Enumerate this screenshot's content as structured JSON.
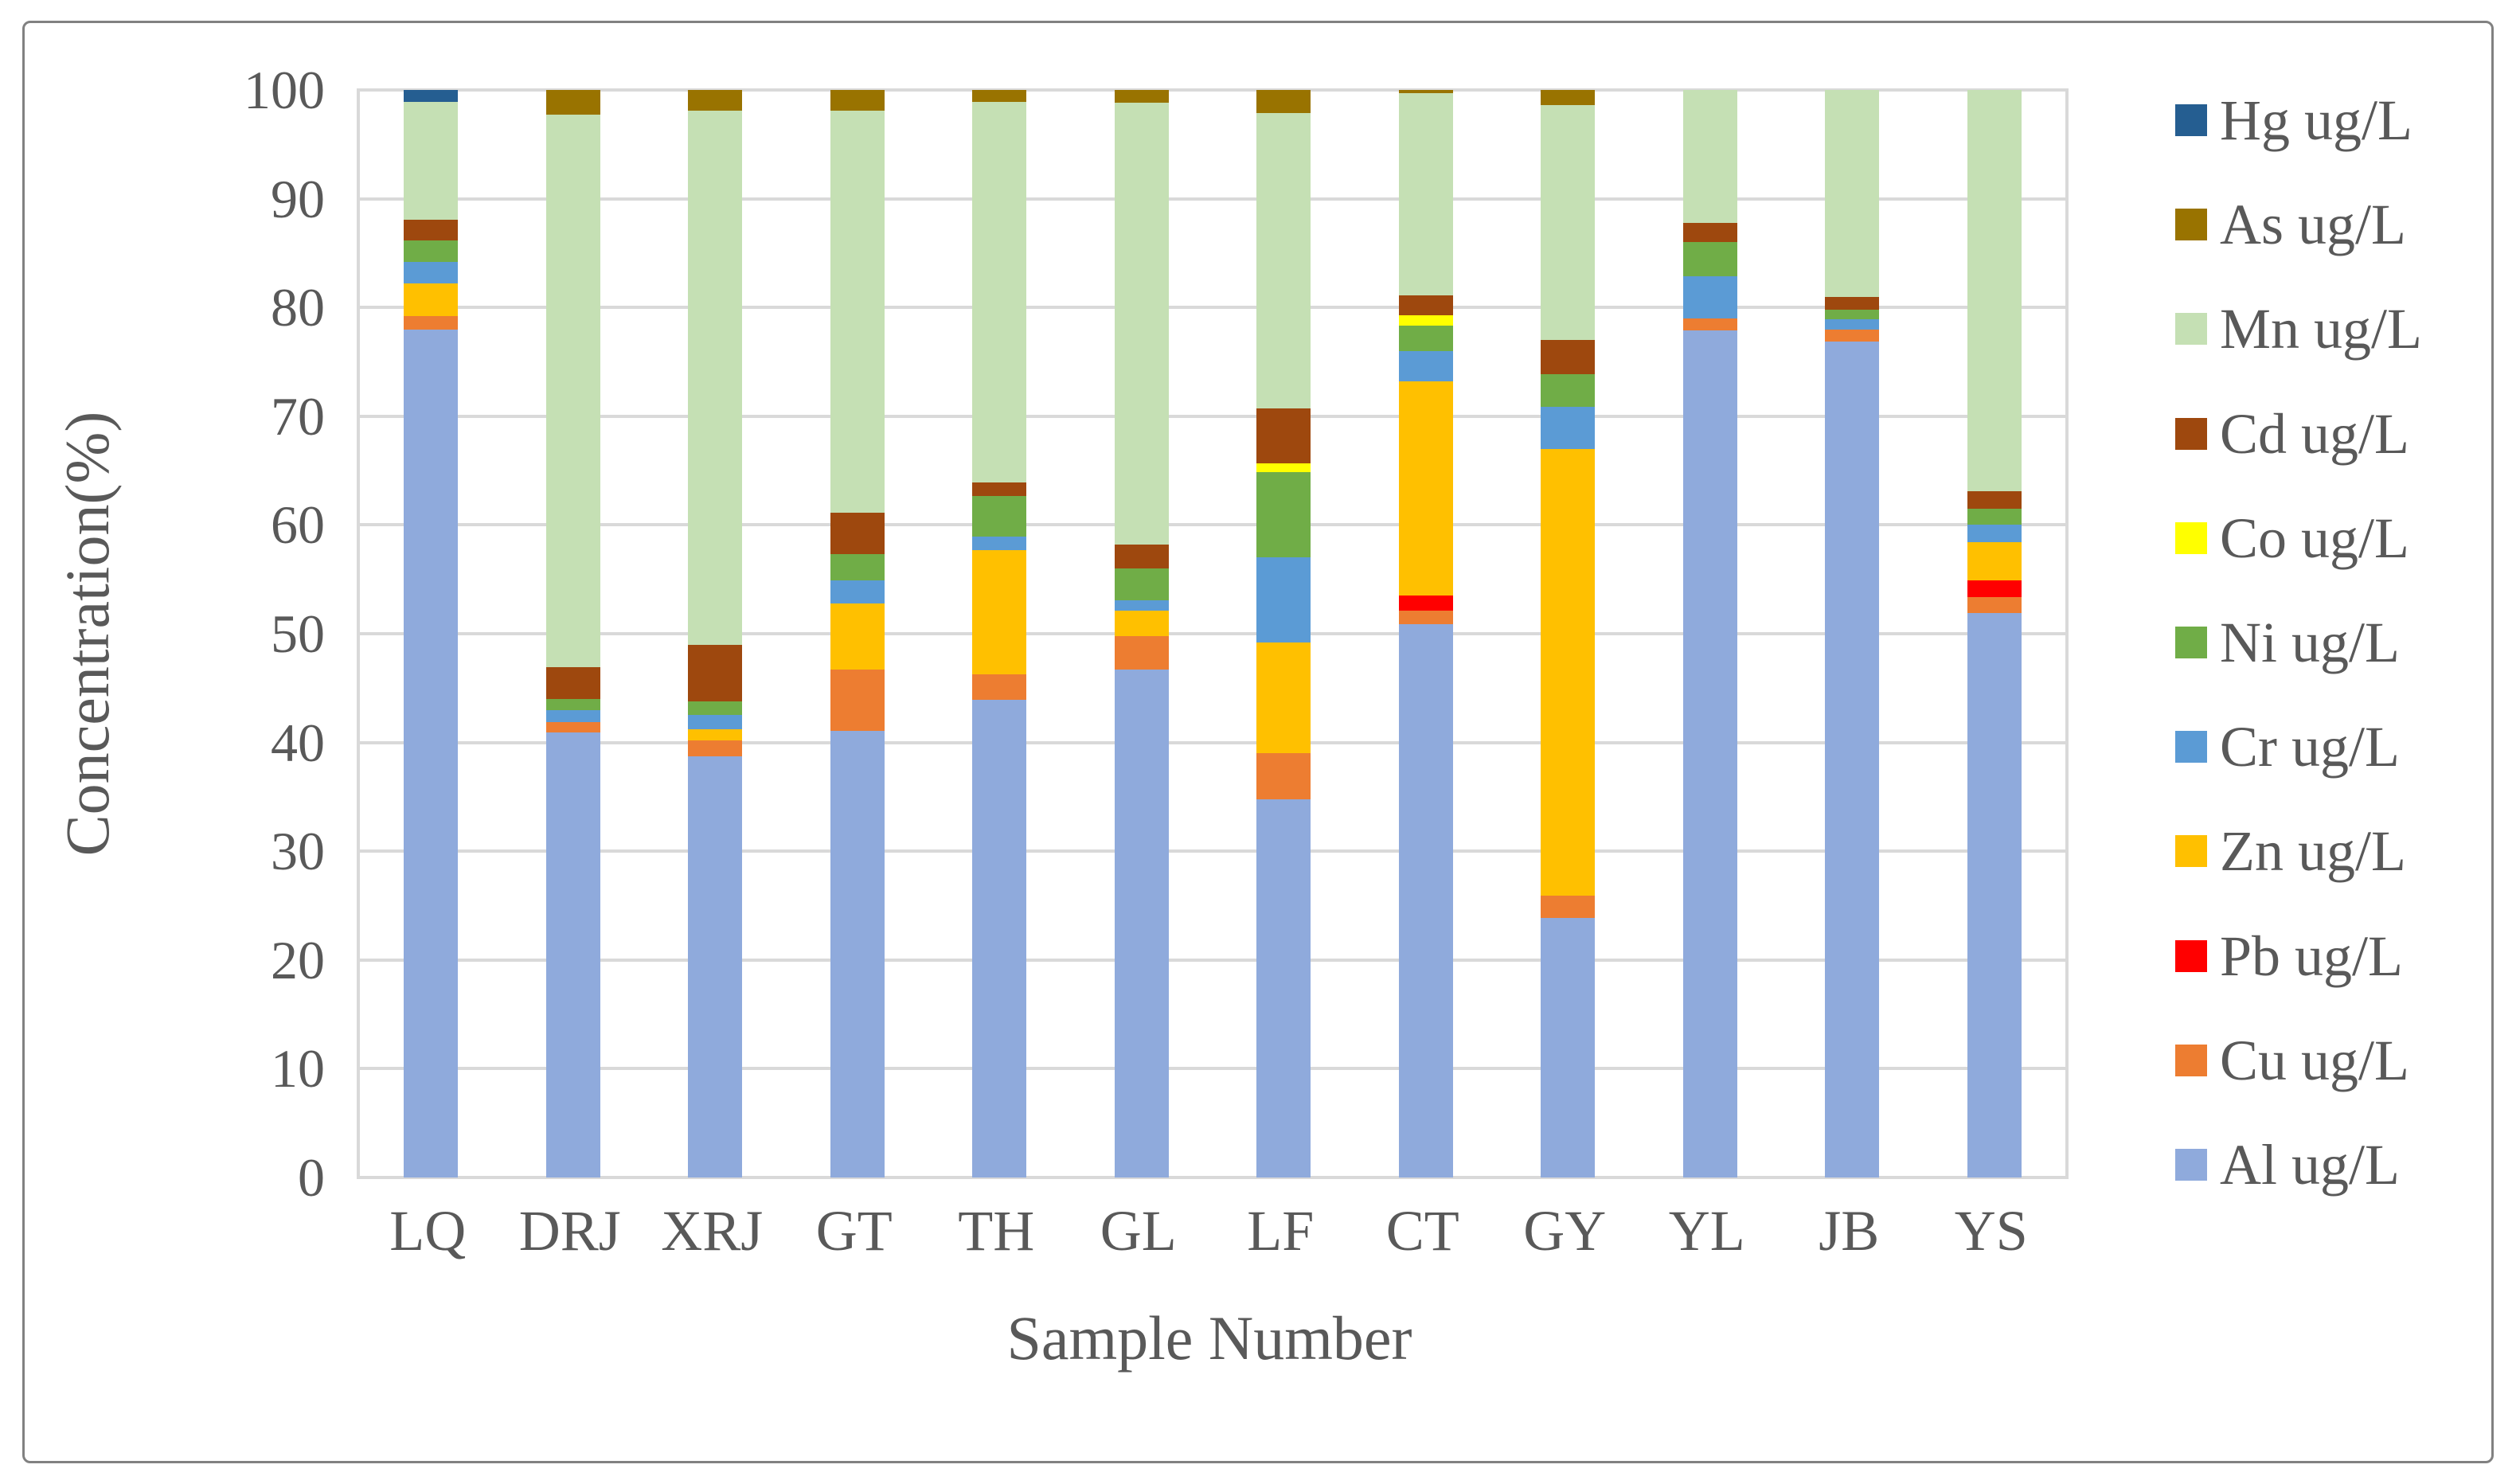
{
  "figure": {
    "background": "#ffffff",
    "border_color": "#818181",
    "gridline_color": "#d9d9d9",
    "text_color": "#595959"
  },
  "chart_data": {
    "type": "bar",
    "stacked": true,
    "percent_stacked": true,
    "title": "",
    "xlabel": "Sample Number",
    "ylabel": "Concentration(%)",
    "ylim": [
      0,
      100
    ],
    "yticks": [
      0,
      10,
      20,
      30,
      40,
      50,
      60,
      70,
      80,
      90,
      100
    ],
    "grid": true,
    "legend_position": "right",
    "categories": [
      "LQ",
      "DRJ",
      "XRJ",
      "GT",
      "TH",
      "GL",
      "LF",
      "CT",
      "GY",
      "YL",
      "JB",
      "YS"
    ],
    "series": [
      {
        "name": "Al ug/L",
        "color": "#8faadc",
        "values": [
          78.0,
          40.9,
          38.7,
          41.1,
          43.9,
          46.7,
          34.8,
          50.9,
          23.9,
          77.9,
          76.9,
          51.9
        ]
      },
      {
        "name": "Cu ug/L",
        "color": "#ed7d31",
        "values": [
          1.2,
          1.0,
          1.5,
          5.6,
          2.4,
          3.1,
          4.2,
          1.2,
          2.0,
          1.1,
          1.1,
          1.5
        ]
      },
      {
        "name": "Pb ug/L",
        "color": "#ff0000",
        "values": [
          0,
          0,
          0,
          0,
          0,
          0,
          0,
          1.4,
          0,
          0,
          0,
          1.5
        ]
      },
      {
        "name": "Zn ug/L",
        "color": "#ffc000",
        "values": [
          3.0,
          0,
          1.0,
          6.1,
          11.4,
          2.3,
          10.2,
          19.7,
          41.1,
          0,
          0,
          3.5
        ]
      },
      {
        "name": "Cr ug/L",
        "color": "#5b9bd5",
        "values": [
          2.0,
          1.1,
          1.3,
          2.1,
          1.2,
          1.0,
          7.8,
          2.8,
          3.9,
          3.9,
          0.9,
          1.6
        ]
      },
      {
        "name": "Ni ug/L",
        "color": "#70ad47",
        "values": [
          2.0,
          1.0,
          1.3,
          2.4,
          3.8,
          2.9,
          7.9,
          2.3,
          3.0,
          3.1,
          0.9,
          1.5
        ]
      },
      {
        "name": "Co ug/L",
        "color": "#ffff00",
        "values": [
          0,
          0,
          0,
          0,
          0,
          0,
          0.8,
          1.0,
          0,
          0,
          0,
          0
        ]
      },
      {
        "name": "Cd ug/L",
        "color": "#9e480e",
        "values": [
          1.9,
          2.9,
          5.2,
          3.8,
          1.2,
          2.2,
          5.0,
          1.8,
          3.1,
          1.8,
          1.2,
          1.6
        ]
      },
      {
        "name": "Mn ug/L",
        "color": "#c5e0b4",
        "values": [
          10.8,
          50.8,
          49.1,
          37.0,
          35.0,
          40.6,
          27.2,
          18.6,
          21.6,
          12.2,
          19.0,
          36.9
        ]
      },
      {
        "name": "As ug/L",
        "color": "#997300",
        "values": [
          0,
          2.3,
          1.9,
          1.9,
          1.1,
          1.2,
          2.1,
          0.3,
          1.4,
          0,
          0,
          0
        ]
      },
      {
        "name": "Hg ug/L",
        "color": "#255e91",
        "values": [
          1.1,
          0,
          0,
          0,
          0,
          0,
          0,
          0,
          0,
          0,
          0,
          0
        ]
      }
    ],
    "legend": [
      {
        "label": "Hg ug/L",
        "color": "#255e91"
      },
      {
        "label": "As ug/L",
        "color": "#997300"
      },
      {
        "label": "Mn ug/L",
        "color": "#c5e0b4"
      },
      {
        "label": "Cd ug/L",
        "color": "#9e480e"
      },
      {
        "label": "Co ug/L",
        "color": "#ffff00"
      },
      {
        "label": "Ni ug/L",
        "color": "#70ad47"
      },
      {
        "label": "Cr ug/L",
        "color": "#5b9bd5"
      },
      {
        "label": "Zn ug/L",
        "color": "#ffc000"
      },
      {
        "label": "Pb ug/L",
        "color": "#ff0000"
      },
      {
        "label": "Cu ug/L",
        "color": "#ed7d31"
      },
      {
        "label": "Al ug/L",
        "color": "#8faadc"
      }
    ]
  }
}
